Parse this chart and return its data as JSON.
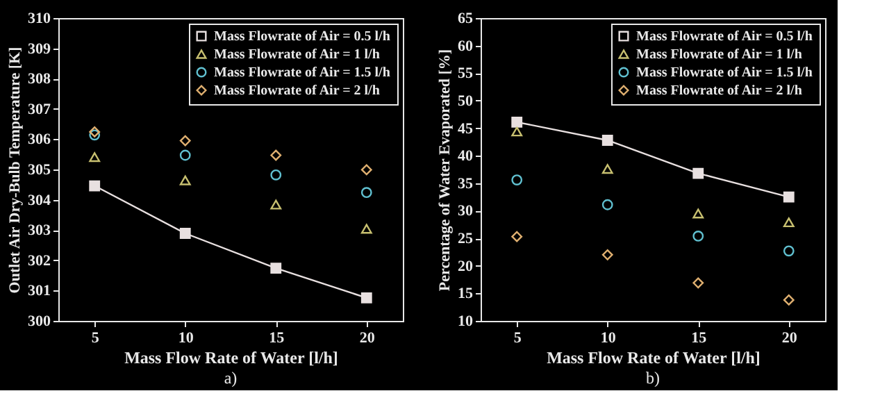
{
  "chart_data": [
    {
      "type": "scatter",
      "title": "a)",
      "xlabel": "Mass Flow Rate of Water [l/h]",
      "ylabel": "Outlet Air Dry-Bulb Temperature [K]",
      "x": [
        5,
        10,
        15,
        20
      ],
      "xlim": [
        3,
        22
      ],
      "xticks": [
        5,
        10,
        15,
        20
      ],
      "ylim": [
        300,
        310
      ],
      "yticks": [
        300,
        301,
        302,
        303,
        304,
        305,
        306,
        307,
        308,
        309,
        310
      ],
      "grid": false,
      "legend": "top right",
      "series": [
        {
          "name": "Mass Flowrate of Air = 0.5 l/h",
          "type": "line",
          "marker": "square",
          "color": "#e8e0e0",
          "values": [
            304.46,
            302.89,
            301.74,
            300.76
          ]
        },
        {
          "name": "Mass Flowrate of Air = 1 l/h",
          "marker": "triangle",
          "color": "#c8c070",
          "values": [
            305.41,
            304.64,
            303.84,
            303.04
          ]
        },
        {
          "name": "Mass Flowrate of Air = 1.5 l/h",
          "marker": "circle",
          "color": "#60c0d0",
          "values": [
            306.14,
            305.47,
            304.82,
            304.24
          ]
        },
        {
          "name": "Mass Flowrate of Air = 2 l/h",
          "marker": "diamond",
          "color": "#e0b070",
          "values": [
            306.24,
            305.95,
            305.47,
            304.99
          ]
        }
      ]
    },
    {
      "type": "scatter",
      "title": "b)",
      "xlabel": "Mass Flow Rate of Water [l/h]",
      "ylabel": "Percentage of Water Evaporated [%]",
      "x": [
        5,
        10,
        15,
        20
      ],
      "xlim": [
        3,
        22
      ],
      "xticks": [
        5,
        10,
        15,
        20
      ],
      "ylim": [
        10,
        65
      ],
      "yticks": [
        10,
        15,
        20,
        25,
        30,
        35,
        40,
        45,
        50,
        55,
        60,
        65
      ],
      "grid": false,
      "legend": "top right",
      "series": [
        {
          "name": "Mass Flowrate of Air = 0.5 l/h",
          "type": "line",
          "marker": "square",
          "color": "#e8e0e0",
          "values": [
            46.1,
            42.8,
            36.8,
            32.5
          ]
        },
        {
          "name": "Mass Flowrate of Air = 1 l/h",
          "marker": "triangle",
          "color": "#c8c070",
          "values": [
            44.4,
            37.6,
            29.5,
            27.9
          ]
        },
        {
          "name": "Mass Flowrate of Air = 1.5 l/h",
          "marker": "circle",
          "color": "#60c0d0",
          "values": [
            35.6,
            31.1,
            25.4,
            22.7
          ]
        },
        {
          "name": "Mass Flowrate of Air = 2 l/h",
          "marker": "diamond",
          "color": "#e0b070",
          "values": [
            25.3,
            22.0,
            16.9,
            13.8
          ]
        }
      ]
    }
  ]
}
